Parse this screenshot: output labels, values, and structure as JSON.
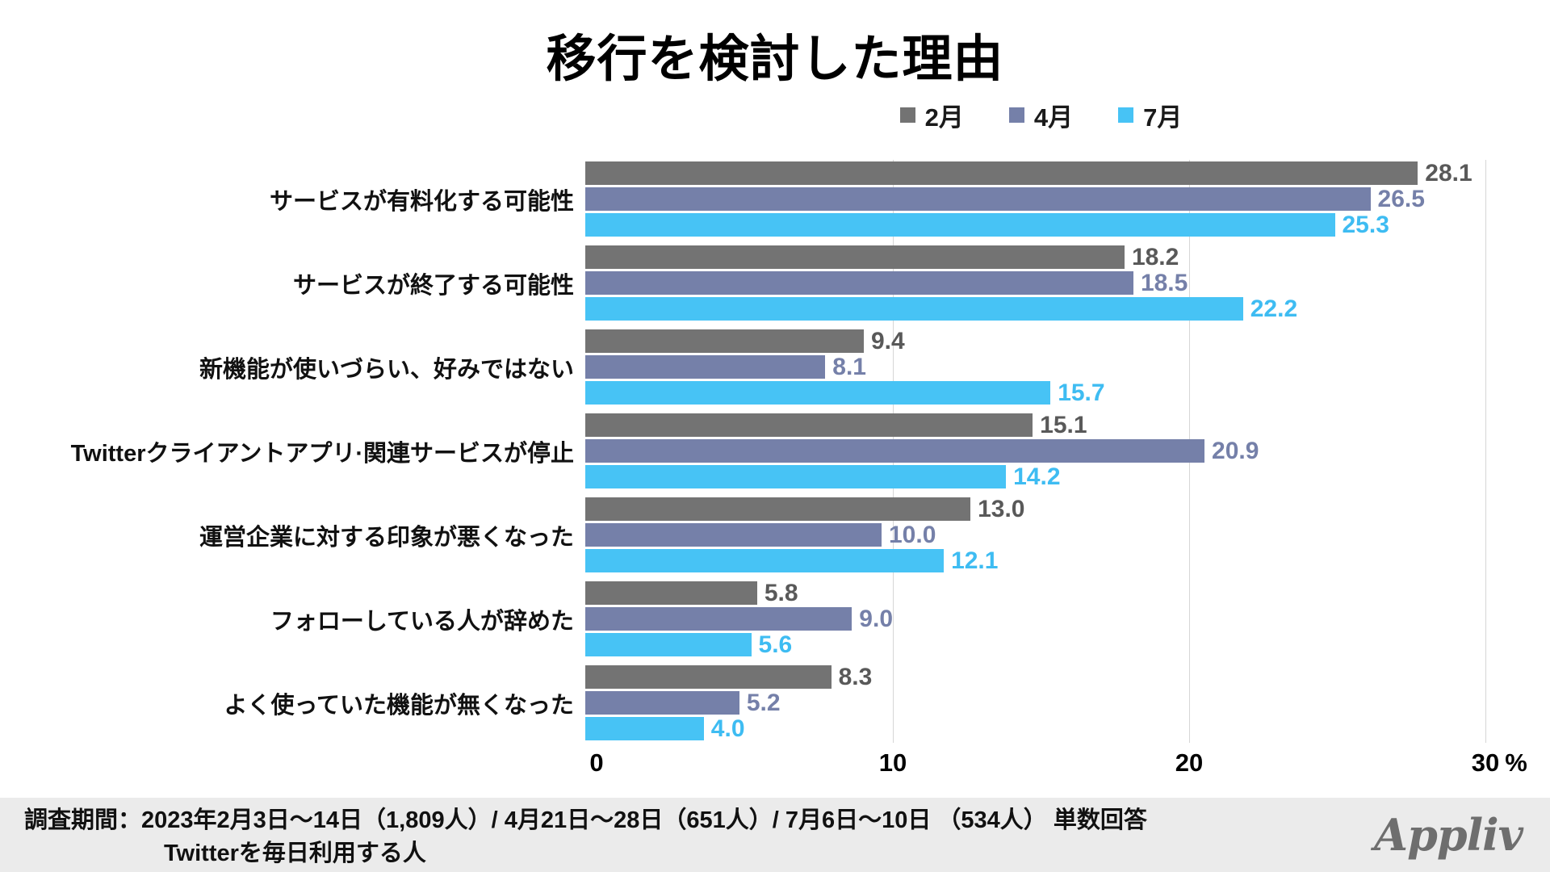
{
  "title": "移行を検討した理由",
  "chart_data": {
    "type": "bar",
    "orientation": "horizontal",
    "unit": "%",
    "xlim": [
      0,
      30
    ],
    "xticks": [
      0,
      10,
      20,
      30
    ],
    "grid": true,
    "legend_position": "top",
    "categories": [
      "サービスが有料化する可能性",
      "サービスが終了する可能性",
      "新機能が使いづらい、好みではない",
      "Twitterクライアントアプリ·関連サービスが停止",
      "運営企業に対する印象が悪くなった",
      "フォローしている人が辞めた",
      "よく使っていた機能が無くなった"
    ],
    "series": [
      {
        "name": "2月",
        "color": "#737373",
        "label_color": "#595959",
        "values": [
          28.1,
          18.2,
          9.4,
          15.1,
          13.0,
          5.8,
          8.3
        ]
      },
      {
        "name": "4月",
        "color": "#7580A9",
        "label_color": "#7580A9",
        "values": [
          26.5,
          18.5,
          8.1,
          20.9,
          10.0,
          9.0,
          5.2
        ]
      },
      {
        "name": "7月",
        "color": "#47C3F5",
        "label_color": "#3EBCF2",
        "values": [
          25.3,
          22.2,
          15.7,
          14.2,
          12.1,
          5.6,
          4.0
        ]
      }
    ]
  },
  "axis": {
    "tick_labels": [
      "0",
      "10",
      "20",
      "30"
    ],
    "unit_label": "%"
  },
  "footer": {
    "line1": "調査期間：2023年2月3日〜14日（1,809人）/ 4月21日〜28日（651人）/ 7月6日〜10日 （534人） 単数回答",
    "line2": "Twitterを毎日利用する人",
    "logo": "Appliv"
  },
  "colors": {
    "gridline": "#d6d6d6",
    "footer_background": "#ebebeb",
    "logo_gray": "#6e6e6e"
  }
}
